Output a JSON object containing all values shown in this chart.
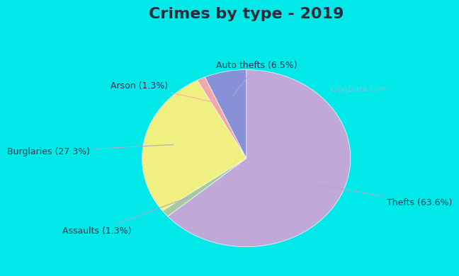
{
  "title": "Crimes by type - 2019",
  "labels": [
    "Thefts",
    "Burglaries",
    "Auto thefts",
    "Arson",
    "Assaults"
  ],
  "values": [
    63.6,
    27.3,
    6.5,
    1.3,
    1.3
  ],
  "colors": [
    "#c0a8d8",
    "#f0f080",
    "#8890d8",
    "#f0a8a8",
    "#a8c8a0"
  ],
  "label_texts": [
    "Thefts (63.6%)",
    "Burglaries (27.3%)",
    "Auto thefts (6.5%)",
    "Arson (1.3%)",
    "Assaults (1.3%)"
  ],
  "background_color_outer": "#00e8e8",
  "background_color_inner": "#cce8d8",
  "title_fontsize": 16,
  "label_fontsize": 9,
  "watermark": "City-Data.com"
}
